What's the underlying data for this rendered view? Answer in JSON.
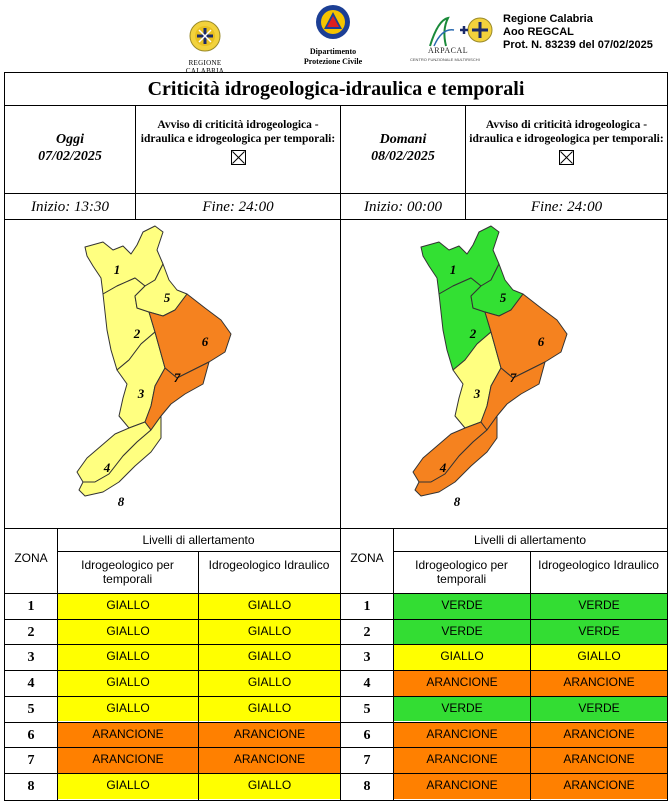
{
  "header": {
    "region_logo_label": "REGIONE CALABRIA",
    "dept_label_line1": "Dipartimento",
    "dept_label_line2": "Protezione Civile",
    "arpacal_label": "ARPACAL",
    "arpacal_sub": "CENTRO FUNZIONALE MULTIRISCHI",
    "prot_line1": "Regione Calabria",
    "prot_line2": "Aoo REGCAL",
    "prot_line3": "Prot. N. 83239 del 07/02/2025"
  },
  "title": "Criticità idrogeologica-idraulica e temporali",
  "today": {
    "label": "Oggi",
    "date": "07/02/2025",
    "avviso": "Avviso di criticità idrogeologica - idraulica e idrogeologica per temporali:",
    "start": "Inizio: 13:30",
    "end": "Fine: 24:00"
  },
  "tomorrow": {
    "label": "Domani",
    "date": "08/02/2025",
    "avviso": "Avviso di criticità idrogeologica - idraulica e idrogeologica per temporali:",
    "start": "Inizio: 00:00",
    "end": "Fine: 24:00"
  },
  "colors": {
    "giallo": "#ffff00",
    "arancione": "#ff8000",
    "verde": "#33dd33",
    "map_yellow": "#ffff80",
    "map_orange": "#f5821f",
    "map_green": "#33e033"
  },
  "zone_labels": [
    "1",
    "2",
    "3",
    "4",
    "5",
    "6",
    "7",
    "8"
  ],
  "table": {
    "livelli_header": "Livelli di allertamento",
    "zona_header": "ZONA",
    "col1_header": "Idrogeologico per temporali",
    "col2_header": "Idrogeologico Idraulico",
    "today_rows": [
      {
        "zona": "1",
        "a": "GIALLO",
        "b": "GIALLO"
      },
      {
        "zona": "2",
        "a": "GIALLO",
        "b": "GIALLO"
      },
      {
        "zona": "3",
        "a": "GIALLO",
        "b": "GIALLO"
      },
      {
        "zona": "4",
        "a": "GIALLO",
        "b": "GIALLO"
      },
      {
        "zona": "5",
        "a": "GIALLO",
        "b": "GIALLO"
      },
      {
        "zona": "6",
        "a": "ARANCIONE",
        "b": "ARANCIONE"
      },
      {
        "zona": "7",
        "a": "ARANCIONE",
        "b": "ARANCIONE"
      },
      {
        "zona": "8",
        "a": "GIALLO",
        "b": "GIALLO"
      }
    ],
    "tomorrow_rows": [
      {
        "zona": "1",
        "a": "VERDE",
        "b": "VERDE"
      },
      {
        "zona": "2",
        "a": "VERDE",
        "b": "VERDE"
      },
      {
        "zona": "3",
        "a": "GIALLO",
        "b": "GIALLO"
      },
      {
        "zona": "4",
        "a": "ARANCIONE",
        "b": "ARANCIONE"
      },
      {
        "zona": "5",
        "a": "VERDE",
        "b": "VERDE"
      },
      {
        "zona": "6",
        "a": "ARANCIONE",
        "b": "ARANCIONE"
      },
      {
        "zona": "7",
        "a": "ARANCIONE",
        "b": "ARANCIONE"
      },
      {
        "zona": "8",
        "a": "ARANCIONE",
        "b": "ARANCIONE"
      }
    ]
  }
}
